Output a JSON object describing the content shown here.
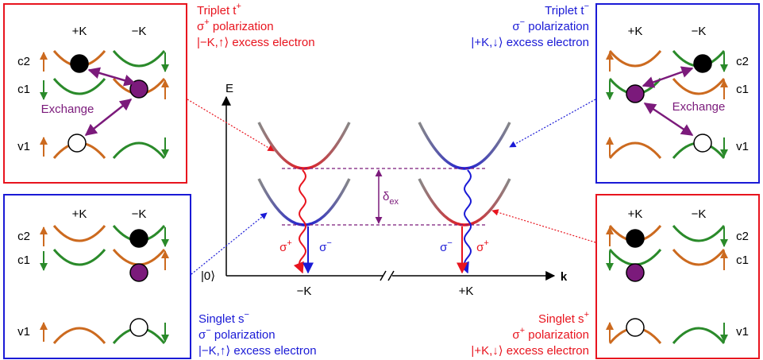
{
  "boxes": [
    {
      "k_labels": [
        "+K",
        "−K"
      ],
      "band_labels": [
        "c2",
        "c1",
        "v1"
      ],
      "exchange": "Exchange"
    },
    {
      "k_labels": [
        "+K",
        "−K"
      ],
      "band_labels": [
        "c2",
        "c1",
        "v1"
      ],
      "exchange": "Exchange"
    },
    {
      "k_labels": [
        "+K",
        "−K"
      ],
      "band_labels": [
        "c2",
        "c1",
        "v1"
      ]
    },
    {
      "k_labels": [
        "+K",
        "−K"
      ],
      "band_labels": [
        "c2",
        "c1",
        "v1"
      ]
    }
  ],
  "captions": [
    {
      "lines": [
        [
          {
            "text": "Triplet t"
          },
          {
            "sup": "+"
          }
        ],
        [
          {
            "text": "σ"
          },
          {
            "sup": "+"
          },
          {
            "text": " polarization"
          }
        ],
        [
          {
            "text": "|−K,↑⟩ excess electron"
          }
        ]
      ]
    },
    {
      "lines": [
        [
          {
            "text": "Triplet t"
          },
          {
            "sup": "−"
          }
        ],
        [
          {
            "text": "σ"
          },
          {
            "sup": "−"
          },
          {
            "text": " polarization"
          }
        ],
        [
          {
            "text": "|+K,↓⟩ excess electron"
          }
        ]
      ]
    },
    {
      "lines": [
        [
          {
            "text": "Singlet s"
          },
          {
            "sup": "−"
          }
        ],
        [
          {
            "text": "σ"
          },
          {
            "sup": "−"
          },
          {
            "text": " polarization"
          }
        ],
        [
          {
            "text": "|−K,↑⟩ excess electron"
          }
        ]
      ]
    },
    {
      "lines": [
        [
          {
            "text": "Singlet s"
          },
          {
            "sup": "+"
          }
        ],
        [
          {
            "text": "σ"
          },
          {
            "sup": "+"
          },
          {
            "text": " polarization"
          }
        ],
        [
          {
            "text": "|+K,↓⟩ excess electron"
          }
        ]
      ]
    }
  ],
  "center": {
    "energy_axis": "E",
    "momentum_axis": "k",
    "ground_state": "|0⟩",
    "minus_k": "−K",
    "plus_k": "+K",
    "delta": [
      {
        "text": "δ"
      },
      {
        "sub": "ex"
      }
    ],
    "left_sigma_plus": [
      {
        "text": "σ"
      },
      {
        "sup": "+"
      }
    ],
    "left_sigma_minus": [
      {
        "text": "σ"
      },
      {
        "sup": "−"
      }
    ],
    "right_sigma_minus": [
      {
        "text": "σ"
      },
      {
        "sup": "−"
      }
    ],
    "right_sigma_plus": [
      {
        "text": "σ"
      },
      {
        "sup": "+"
      }
    ]
  }
}
